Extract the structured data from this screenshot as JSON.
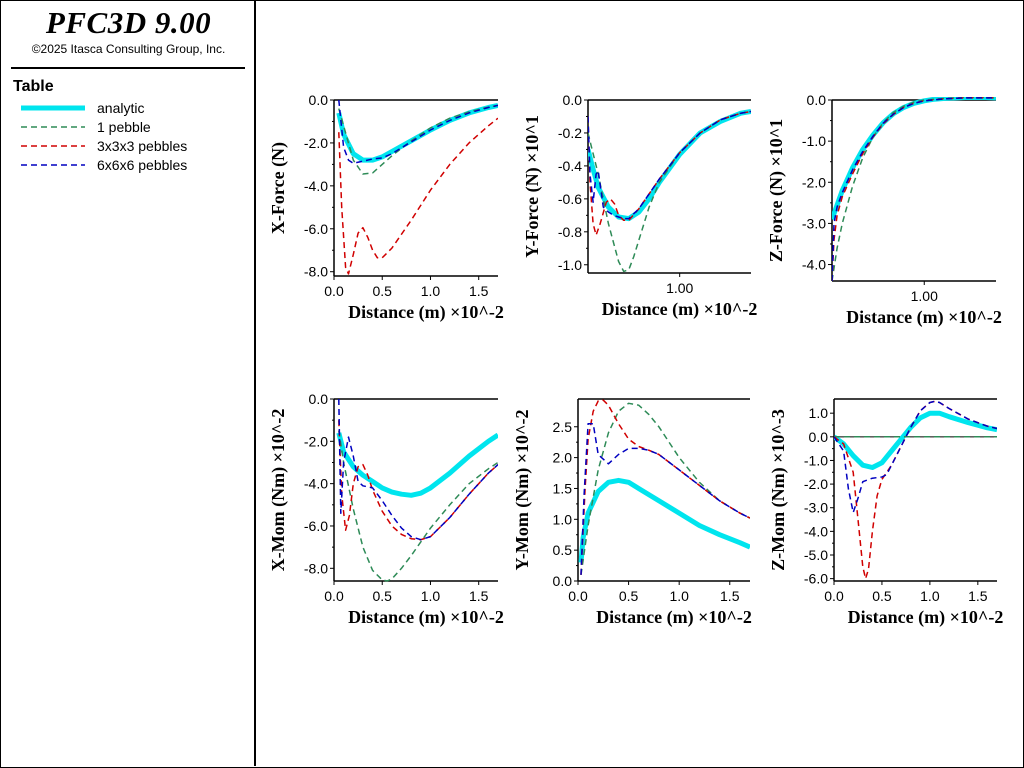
{
  "app": {
    "title": "PFC3D 9.00",
    "copyright": "©2025 Itasca Consulting Group, Inc."
  },
  "legend": {
    "heading": "Table",
    "entries": [
      {
        "label": "analytic",
        "color": "#00e5ee",
        "style": "solid"
      },
      {
        "label": "1 pebble",
        "color": "#2e8b57",
        "style": "dashed"
      },
      {
        "label": "3x3x3 pebbles",
        "color": "#d00000",
        "style": "dashed"
      },
      {
        "label": "6x6x6 pebbles",
        "color": "#0000c0",
        "style": "dashed"
      }
    ]
  },
  "chart_data": [
    {
      "type": "line",
      "xlabel": "Distance (m) ×10^-2",
      "ylabel": "X-Force (N)",
      "xlim": [
        0,
        1.7
      ],
      "ylim": [
        -8.2,
        0
      ],
      "xticks": [
        0.0,
        0.5,
        1.0,
        1.5
      ],
      "xtick_labels": [
        "0.0",
        "0.5",
        "1.0",
        "1.5"
      ],
      "yticks": [
        0,
        -2,
        -4,
        -6,
        -8
      ],
      "ytick_labels": [
        "0.0",
        "-2.0",
        "-4.0",
        "-6.0",
        "-8.0"
      ],
      "series": [
        {
          "name": "analytic",
          "x": [
            0.05,
            0.1,
            0.2,
            0.3,
            0.4,
            0.5,
            0.6,
            0.8,
            1.0,
            1.2,
            1.4,
            1.6,
            1.7
          ],
          "y": [
            -0.6,
            -1.6,
            -2.5,
            -2.8,
            -2.8,
            -2.65,
            -2.4,
            -1.9,
            -1.4,
            -0.95,
            -0.6,
            -0.35,
            -0.25
          ]
        },
        {
          "name": "1 pebble",
          "x": [
            0.05,
            0.1,
            0.2,
            0.3,
            0.4,
            0.5,
            0.6,
            0.8,
            1.0,
            1.2,
            1.4,
            1.6,
            1.7
          ],
          "y": [
            -0.4,
            -1.2,
            -2.8,
            -3.45,
            -3.4,
            -3.0,
            -2.6,
            -1.9,
            -1.3,
            -0.85,
            -0.55,
            -0.33,
            -0.25
          ]
        },
        {
          "name": "3x3x3 pebbles",
          "x": [
            0.05,
            0.08,
            0.12,
            0.15,
            0.2,
            0.25,
            0.3,
            0.35,
            0.4,
            0.45,
            0.5,
            0.6,
            0.8,
            1.0,
            1.2,
            1.4,
            1.6,
            1.7
          ],
          "y": [
            -1.5,
            -5.0,
            -7.8,
            -8.1,
            -7.2,
            -6.2,
            -5.95,
            -6.4,
            -7.0,
            -7.35,
            -7.35,
            -6.9,
            -5.6,
            -4.2,
            -3.0,
            -2.0,
            -1.2,
            -0.85
          ]
        },
        {
          "name": "6x6x6 pebbles",
          "x": [
            0.05,
            0.1,
            0.15,
            0.2,
            0.3,
            0.4,
            0.5,
            0.6,
            0.8,
            1.0,
            1.2,
            1.4,
            1.6,
            1.7
          ],
          "y": [
            0.0,
            -2.2,
            -2.8,
            -2.95,
            -2.85,
            -2.75,
            -2.7,
            -2.5,
            -1.95,
            -1.4,
            -0.95,
            -0.6,
            -0.35,
            -0.25
          ]
        }
      ]
    },
    {
      "type": "line",
      "xlabel": "Distance (m) ×10^-2",
      "ylabel": "Y-Force (N) ×10^1",
      "xlim": [
        0.1,
        1.7
      ],
      "ylim": [
        -1.05,
        0
      ],
      "xticks": [
        1.0
      ],
      "xtick_labels": [
        "1.00"
      ],
      "yticks": [
        0,
        -0.2,
        -0.4,
        -0.6,
        -0.8,
        -1.0
      ],
      "ytick_labels": [
        "0.0",
        "-0.2",
        "-0.4",
        "-0.6",
        "-0.8",
        "-1.0"
      ],
      "series": [
        {
          "name": "analytic",
          "x": [
            0.1,
            0.15,
            0.2,
            0.3,
            0.4,
            0.5,
            0.6,
            0.7,
            0.8,
            1.0,
            1.2,
            1.4,
            1.6,
            1.7
          ],
          "y": [
            -0.3,
            -0.42,
            -0.53,
            -0.65,
            -0.71,
            -0.72,
            -0.68,
            -0.6,
            -0.5,
            -0.33,
            -0.2,
            -0.13,
            -0.08,
            -0.07
          ]
        },
        {
          "name": "1 pebble",
          "x": [
            0.1,
            0.2,
            0.3,
            0.4,
            0.45,
            0.5,
            0.55,
            0.6,
            0.7,
            0.8,
            1.0,
            1.2,
            1.4,
            1.6,
            1.7
          ],
          "y": [
            -0.2,
            -0.45,
            -0.75,
            -0.98,
            -1.04,
            -1.03,
            -0.95,
            -0.85,
            -0.65,
            -0.5,
            -0.32,
            -0.2,
            -0.12,
            -0.08,
            -0.07
          ]
        },
        {
          "name": "3x3x3 pebbles",
          "x": [
            0.1,
            0.12,
            0.15,
            0.18,
            0.22,
            0.28,
            0.32,
            0.36,
            0.4,
            0.45,
            0.5,
            0.6,
            0.8,
            1.0,
            1.2,
            1.4,
            1.6,
            1.7
          ],
          "y": [
            -0.1,
            -0.5,
            -0.75,
            -0.82,
            -0.75,
            -0.62,
            -0.6,
            -0.63,
            -0.7,
            -0.73,
            -0.73,
            -0.66,
            -0.48,
            -0.32,
            -0.2,
            -0.12,
            -0.08,
            -0.07
          ]
        },
        {
          "name": "6x6x6 pebbles",
          "x": [
            0.1,
            0.12,
            0.15,
            0.18,
            0.2,
            0.25,
            0.3,
            0.35,
            0.4,
            0.45,
            0.5,
            0.6,
            0.8,
            1.0,
            1.2,
            1.4,
            1.6,
            1.7
          ],
          "y": [
            -0.1,
            -0.45,
            -0.62,
            -0.45,
            -0.43,
            -0.65,
            -0.68,
            -0.7,
            -0.71,
            -0.72,
            -0.72,
            -0.66,
            -0.48,
            -0.32,
            -0.2,
            -0.12,
            -0.08,
            -0.07
          ]
        }
      ]
    },
    {
      "type": "line",
      "xlabel": "Distance (m) ×10^-2",
      "ylabel": "Z-Force (N) ×10^1",
      "xlim": [
        0.1,
        1.7
      ],
      "ylim": [
        -4.4,
        0
      ],
      "xticks": [
        1.0
      ],
      "xtick_labels": [
        "1.00"
      ],
      "yticks": [
        0,
        -1,
        -2,
        -3,
        -4
      ],
      "ytick_labels": [
        "0.0",
        "-1.0",
        "-2.0",
        "-3.0",
        "-4.0"
      ],
      "series": [
        {
          "name": "analytic",
          "x": [
            0.1,
            0.2,
            0.3,
            0.4,
            0.5,
            0.6,
            0.7,
            0.8,
            0.9,
            1.0,
            1.1,
            1.2,
            1.4,
            1.6,
            1.7
          ],
          "y": [
            -2.9,
            -2.2,
            -1.65,
            -1.2,
            -0.85,
            -0.55,
            -0.33,
            -0.18,
            -0.08,
            -0.02,
            0.02,
            0.04,
            0.06,
            0.06,
            0.05
          ]
        },
        {
          "name": "1 pebble",
          "x": [
            0.1,
            0.15,
            0.2,
            0.3,
            0.4,
            0.5,
            0.6,
            0.7,
            0.8,
            0.9,
            1.0,
            1.2,
            1.4,
            1.6,
            1.7
          ],
          "y": [
            -4.4,
            -3.6,
            -3.0,
            -2.1,
            -1.4,
            -0.9,
            -0.55,
            -0.3,
            -0.15,
            -0.05,
            0.0,
            0.04,
            0.06,
            0.06,
            0.05
          ]
        },
        {
          "name": "3x3x3 pebbles",
          "x": [
            0.1,
            0.12,
            0.15,
            0.2,
            0.3,
            0.4,
            0.5,
            0.6,
            0.7,
            0.8,
            0.9,
            1.0,
            1.2,
            1.4,
            1.6,
            1.7
          ],
          "y": [
            -4.4,
            -3.4,
            -2.8,
            -2.35,
            -1.8,
            -1.3,
            -0.9,
            -0.58,
            -0.35,
            -0.18,
            -0.08,
            -0.02,
            0.03,
            0.05,
            0.05,
            0.05
          ]
        },
        {
          "name": "6x6x6 pebbles",
          "x": [
            0.1,
            0.12,
            0.15,
            0.2,
            0.3,
            0.4,
            0.5,
            0.6,
            0.7,
            0.8,
            0.9,
            1.0,
            1.2,
            1.4,
            1.6,
            1.7
          ],
          "y": [
            -4.4,
            -3.0,
            -2.6,
            -2.25,
            -1.7,
            -1.25,
            -0.88,
            -0.56,
            -0.34,
            -0.18,
            -0.08,
            -0.02,
            0.03,
            0.05,
            0.05,
            0.05
          ]
        }
      ]
    },
    {
      "type": "line",
      "xlabel": "Distance (m) ×10^-2",
      "ylabel": "X-Mom (Nm) ×10^-2",
      "xlim": [
        0,
        1.7
      ],
      "ylim": [
        -8.6,
        0
      ],
      "xticks": [
        0.0,
        0.5,
        1.0,
        1.5
      ],
      "xtick_labels": [
        "0.0",
        "0.5",
        "1.0",
        "1.5"
      ],
      "yticks": [
        0,
        -2,
        -4,
        -6,
        -8
      ],
      "ytick_labels": [
        "0.0",
        "-2.0",
        "-4.0",
        "-6.0",
        "-8.0"
      ],
      "series": [
        {
          "name": "analytic",
          "x": [
            0.05,
            0.1,
            0.2,
            0.3,
            0.4,
            0.5,
            0.6,
            0.7,
            0.8,
            0.9,
            1.0,
            1.2,
            1.4,
            1.6,
            1.7
          ],
          "y": [
            -1.6,
            -2.5,
            -3.2,
            -3.6,
            -3.9,
            -4.2,
            -4.4,
            -4.5,
            -4.55,
            -4.45,
            -4.2,
            -3.5,
            -2.7,
            -2.0,
            -1.7
          ]
        },
        {
          "name": "1 pebble",
          "x": [
            0.05,
            0.1,
            0.2,
            0.3,
            0.4,
            0.5,
            0.55,
            0.6,
            0.7,
            0.8,
            1.0,
            1.2,
            1.4,
            1.6,
            1.7
          ],
          "y": [
            -1.5,
            -3.0,
            -5.2,
            -7.0,
            -8.1,
            -8.55,
            -8.6,
            -8.5,
            -8.0,
            -7.4,
            -6.1,
            -5.0,
            -4.0,
            -3.3,
            -3.0
          ]
        },
        {
          "name": "3x3x3 pebbles",
          "x": [
            0.05,
            0.08,
            0.12,
            0.16,
            0.2,
            0.25,
            0.3,
            0.35,
            0.4,
            0.5,
            0.6,
            0.7,
            0.8,
            0.9,
            1.0,
            1.2,
            1.4,
            1.6,
            1.7
          ],
          "y": [
            -1.0,
            -4.5,
            -6.2,
            -5.5,
            -4.0,
            -3.2,
            -3.1,
            -3.6,
            -4.3,
            -5.3,
            -6.0,
            -6.4,
            -6.6,
            -6.65,
            -6.5,
            -5.6,
            -4.5,
            -3.5,
            -3.1
          ]
        },
        {
          "name": "6x6x6 pebbles",
          "x": [
            0.05,
            0.07,
            0.1,
            0.15,
            0.2,
            0.25,
            0.3,
            0.4,
            0.5,
            0.6,
            0.7,
            0.8,
            0.9,
            1.0,
            1.2,
            1.4,
            1.6,
            1.7
          ],
          "y": [
            0.0,
            -5.4,
            -3.0,
            -1.8,
            -2.7,
            -3.9,
            -4.1,
            -4.2,
            -4.8,
            -5.5,
            -6.1,
            -6.5,
            -6.65,
            -6.5,
            -5.6,
            -4.5,
            -3.5,
            -3.1
          ]
        }
      ]
    },
    {
      "type": "line",
      "xlabel": "Distance (m) ×10^-2",
      "ylabel": "Y-Mom (Nm) ×10^-2",
      "xlim": [
        0,
        1.7
      ],
      "ylim": [
        0,
        2.95
      ],
      "xticks": [
        0.0,
        0.5,
        1.0,
        1.5
      ],
      "xtick_labels": [
        "0.0",
        "0.5",
        "1.0",
        "1.5"
      ],
      "yticks": [
        0,
        0.5,
        1.0,
        1.5,
        2.0,
        2.5
      ],
      "ytick_labels": [
        "0.0",
        "0.5",
        "1.0",
        "1.5",
        "2.0",
        "2.5"
      ],
      "series": [
        {
          "name": "analytic",
          "x": [
            0.03,
            0.05,
            0.1,
            0.2,
            0.3,
            0.4,
            0.5,
            0.6,
            0.8,
            1.0,
            1.2,
            1.4,
            1.6,
            1.7
          ],
          "y": [
            0.3,
            0.7,
            1.1,
            1.45,
            1.6,
            1.63,
            1.6,
            1.5,
            1.3,
            1.1,
            0.9,
            0.75,
            0.62,
            0.55
          ]
        },
        {
          "name": "1 pebble",
          "x": [
            0.03,
            0.1,
            0.2,
            0.3,
            0.4,
            0.5,
            0.6,
            0.7,
            0.8,
            1.0,
            1.2,
            1.4,
            1.6,
            1.7
          ],
          "y": [
            0.1,
            0.9,
            1.8,
            2.4,
            2.75,
            2.88,
            2.85,
            2.7,
            2.5,
            2.0,
            1.6,
            1.3,
            1.1,
            1.02
          ]
        },
        {
          "name": "3x3x3 pebbles",
          "x": [
            0.03,
            0.07,
            0.1,
            0.15,
            0.2,
            0.25,
            0.3,
            0.4,
            0.5,
            0.6,
            0.7,
            0.8,
            1.0,
            1.2,
            1.4,
            1.6,
            1.7
          ],
          "y": [
            0.1,
            1.5,
            2.3,
            2.75,
            2.92,
            2.93,
            2.85,
            2.55,
            2.3,
            2.18,
            2.12,
            2.05,
            1.8,
            1.55,
            1.3,
            1.1,
            1.02
          ]
        },
        {
          "name": "6x6x6 pebbles",
          "x": [
            0.03,
            0.06,
            0.1,
            0.15,
            0.2,
            0.3,
            0.4,
            0.5,
            0.6,
            0.7,
            0.8,
            1.0,
            1.2,
            1.4,
            1.6,
            1.7
          ],
          "y": [
            0.1,
            1.4,
            2.55,
            2.55,
            2.05,
            1.9,
            2.05,
            2.15,
            2.15,
            2.12,
            2.05,
            1.8,
            1.55,
            1.3,
            1.1,
            1.02
          ]
        }
      ]
    },
    {
      "type": "line",
      "xlabel": "Distance (m) ×10^-2",
      "ylabel": "Z-Mom (Nm) ×10^-3",
      "xlim": [
        0,
        1.7
      ],
      "ylim": [
        -6.1,
        1.6
      ],
      "xticks": [
        0.0,
        0.5,
        1.0,
        1.5
      ],
      "xtick_labels": [
        "0.0",
        "0.5",
        "1.0",
        "1.5"
      ],
      "yticks": [
        1,
        0,
        -1,
        -2,
        -3,
        -4,
        -5,
        -6
      ],
      "ytick_labels": [
        "1.0",
        "0.0",
        "-1.0",
        "-2.0",
        "-3.0",
        "-4.0",
        "-5.0",
        "-6.0"
      ],
      "series": [
        {
          "name": "analytic",
          "x": [
            0.0,
            0.1,
            0.2,
            0.3,
            0.4,
            0.5,
            0.6,
            0.7,
            0.8,
            0.9,
            1.0,
            1.1,
            1.2,
            1.4,
            1.6,
            1.7
          ],
          "y": [
            0.0,
            -0.3,
            -0.8,
            -1.2,
            -1.3,
            -1.1,
            -0.6,
            -0.1,
            0.4,
            0.8,
            1.0,
            1.0,
            0.85,
            0.6,
            0.38,
            0.3
          ]
        },
        {
          "name": "1 pebble",
          "x": [
            0.0,
            1.7
          ],
          "y": [
            0.0,
            0.0
          ]
        },
        {
          "name": "3x3x3 pebbles",
          "x": [
            0.0,
            0.1,
            0.2,
            0.25,
            0.3,
            0.33,
            0.36,
            0.4,
            0.45,
            0.5,
            0.6,
            0.7,
            0.8,
            0.9,
            1.0,
            1.05,
            1.1,
            1.2,
            1.4,
            1.6,
            1.7
          ],
          "y": [
            0.0,
            -0.3,
            -1.5,
            -3.5,
            -5.5,
            -6.0,
            -5.6,
            -4.0,
            -2.5,
            -1.8,
            -1.2,
            -0.4,
            0.4,
            1.1,
            1.45,
            1.5,
            1.45,
            1.2,
            0.75,
            0.45,
            0.35
          ]
        },
        {
          "name": "6x6x6 pebbles",
          "x": [
            0.0,
            0.1,
            0.15,
            0.2,
            0.25,
            0.3,
            0.4,
            0.5,
            0.55,
            0.6,
            0.7,
            0.8,
            0.9,
            1.0,
            1.05,
            1.1,
            1.2,
            1.4,
            1.6,
            1.7
          ],
          "y": [
            0.0,
            -0.6,
            -2.2,
            -3.2,
            -2.6,
            -1.9,
            -1.75,
            -1.7,
            -1.6,
            -1.2,
            -0.4,
            0.4,
            1.1,
            1.45,
            1.5,
            1.45,
            1.2,
            0.75,
            0.45,
            0.35
          ]
        }
      ]
    }
  ]
}
